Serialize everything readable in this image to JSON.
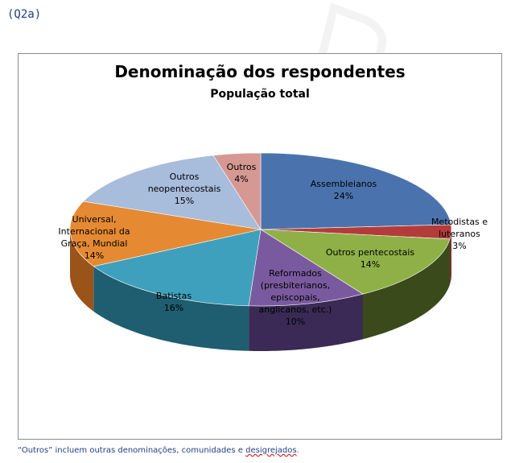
{
  "question_label": "(Q2a)",
  "footnote": {
    "text": "“Outros” incluem outras denominações, comunidades e ",
    "flagged_word": "desigrejados",
    "end": "."
  },
  "chart_data": {
    "type": "pie",
    "title": "Denominação dos respondentes",
    "subtitle": "População total",
    "three_d": true,
    "legend": "none",
    "start_angle_deg": 0,
    "direction": "clockwise",
    "slices": [
      {
        "label": "Assembleianos",
        "value": 24,
        "value_label": "24%",
        "color": "#4a73ae",
        "side_color": "#2d4a73"
      },
      {
        "label": "Metodistas e luteranos",
        "value": 3,
        "value_label": "3%",
        "color": "#b33c3a",
        "side_color": "#6e2221"
      },
      {
        "label": "Outros pentecostais",
        "value": 14,
        "value_label": "14%",
        "color": "#8fb046",
        "side_color": "#3b4a1a"
      },
      {
        "label": "Reformados (presbiterianos, episcopais, anglicanos, etc.)",
        "value": 10,
        "value_label": "10%",
        "color": "#7a5a9f",
        "side_color": "#3a2a55"
      },
      {
        "label": "Batistas",
        "value": 16,
        "value_label": "16%",
        "color": "#3ea0bd",
        "side_color": "#1f5d70"
      },
      {
        "label": "Universal, Internacional da Graça, Mundial",
        "value": 14,
        "value_label": "14%",
        "color": "#e58a33",
        "side_color": "#9a541a"
      },
      {
        "label": "Outros neopentecostais",
        "value": 15,
        "value_label": "15%",
        "color": "#a8bcdc",
        "side_color": "#6a7fa0"
      },
      {
        "label": "Outros",
        "value": 4,
        "value_label": "4%",
        "color": "#d69893",
        "side_color": "#8e5a56"
      }
    ]
  }
}
